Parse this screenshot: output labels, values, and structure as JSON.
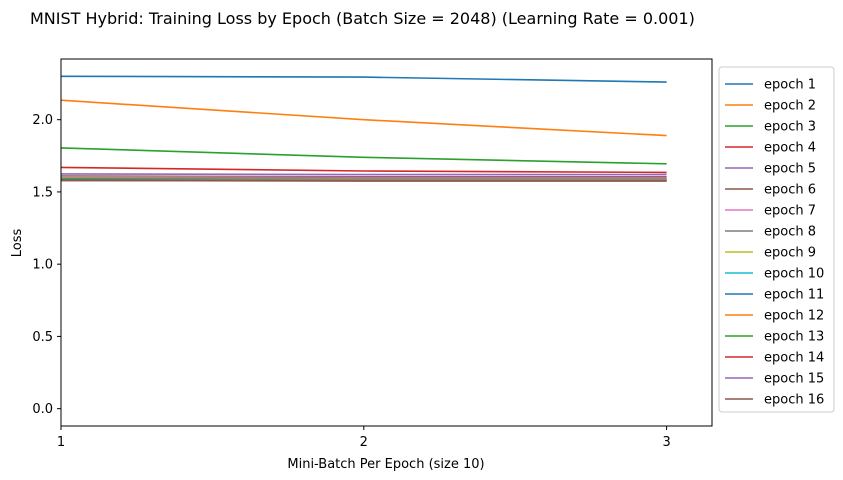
{
  "chart_data": {
    "type": "line",
    "title": "MNIST Hybrid: Training Loss by Epoch (Batch Size = 2048) (Learning Rate = 0.001)",
    "xlabel": "Mini-Batch Per Epoch (size 10)",
    "ylabel": "Loss",
    "x": [
      1,
      2,
      3
    ],
    "xlim": [
      1,
      3.15
    ],
    "ylim": [
      -0.12,
      2.42
    ],
    "xticks": [
      "1",
      "2",
      "3"
    ],
    "yticks": [
      "0.0",
      "0.5",
      "1.0",
      "1.5",
      "2.0"
    ],
    "grid": false,
    "legend_position": "outside-right",
    "series": [
      {
        "name": "epoch 1",
        "color": "#1f77b4",
        "values": [
          2.3,
          2.295,
          2.26
        ]
      },
      {
        "name": "epoch 2",
        "color": "#ff7f0e",
        "values": [
          2.135,
          2.0,
          1.89
        ]
      },
      {
        "name": "epoch 3",
        "color": "#2ca02c",
        "values": [
          1.805,
          1.74,
          1.695
        ]
      },
      {
        "name": "epoch 4",
        "color": "#d62728",
        "values": [
          1.67,
          1.645,
          1.635
        ]
      },
      {
        "name": "epoch 5",
        "color": "#9467bd",
        "values": [
          1.625,
          1.62,
          1.62
        ]
      },
      {
        "name": "epoch 6",
        "color": "#8c564b",
        "values": [
          1.61,
          1.605,
          1.605
        ]
      },
      {
        "name": "epoch 7",
        "color": "#e377c2",
        "values": [
          1.605,
          1.6,
          1.6
        ]
      },
      {
        "name": "epoch 8",
        "color": "#7f7f7f",
        "values": [
          1.6,
          1.595,
          1.595
        ]
      },
      {
        "name": "epoch 9",
        "color": "#bcbd22",
        "values": [
          1.595,
          1.59,
          1.59
        ]
      },
      {
        "name": "epoch 10",
        "color": "#17becf",
        "values": [
          1.59,
          1.59,
          1.59
        ]
      },
      {
        "name": "epoch 11",
        "color": "#1f77b4",
        "values": [
          1.59,
          1.585,
          1.585
        ]
      },
      {
        "name": "epoch 12",
        "color": "#ff7f0e",
        "values": [
          1.585,
          1.585,
          1.585
        ]
      },
      {
        "name": "epoch 13",
        "color": "#2ca02c",
        "values": [
          1.585,
          1.58,
          1.58
        ]
      },
      {
        "name": "epoch 14",
        "color": "#d62728",
        "values": [
          1.58,
          1.58,
          1.58
        ]
      },
      {
        "name": "epoch 15",
        "color": "#9467bd",
        "values": [
          1.58,
          1.58,
          1.58
        ]
      },
      {
        "name": "epoch 16",
        "color": "#8c564b",
        "values": [
          1.58,
          1.575,
          1.575
        ]
      }
    ]
  }
}
